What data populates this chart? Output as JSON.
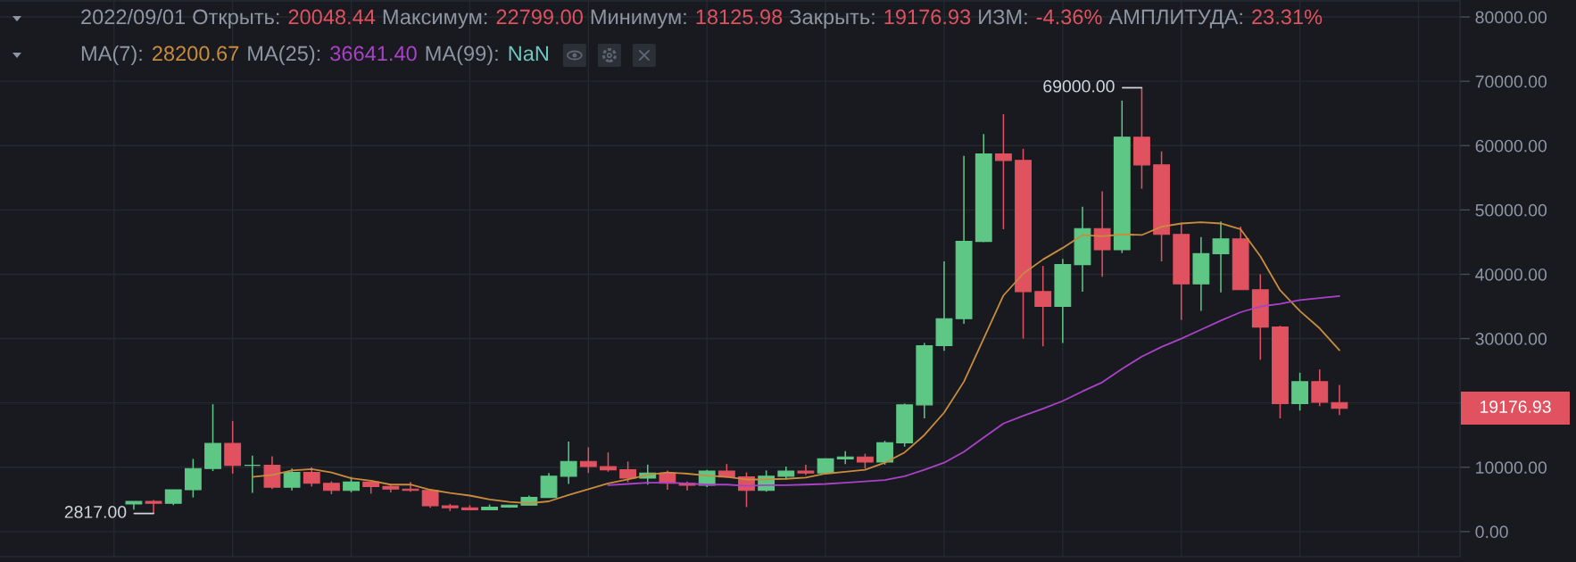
{
  "chart_data": {
    "type": "candlestick",
    "categories": [
      null,
      null,
      null,
      null,
      null,
      null,
      null,
      null,
      null,
      null,
      null,
      null,
      null,
      null,
      null,
      null,
      null,
      null,
      null,
      null,
      null,
      null,
      null,
      null,
      null,
      null,
      null,
      null,
      null,
      null,
      null,
      null,
      null,
      null,
      null,
      null,
      null,
      null,
      null,
      null,
      null,
      null,
      null,
      null,
      null,
      null,
      null,
      null,
      null,
      null,
      null,
      null,
      null,
      null,
      null,
      null,
      null,
      null,
      null,
      null,
      null,
      null
    ],
    "ohlc": [
      [
        4300,
        4700,
        3400,
        4700
      ],
      [
        4700,
        4900,
        2817,
        4400
      ],
      [
        4400,
        6500,
        4100,
        6500
      ],
      [
        6500,
        11300,
        5300,
        9800
      ],
      [
        9800,
        19800,
        9400,
        13700
      ],
      [
        13700,
        17200,
        9000,
        10300
      ],
      [
        10300,
        11800,
        6000,
        10300
      ],
      [
        10300,
        11700,
        6600,
        6900
      ],
      [
        6900,
        9800,
        6400,
        9200
      ],
      [
        9200,
        10000,
        7000,
        7500
      ],
      [
        7500,
        7800,
        5800,
        6400
      ],
      [
        6400,
        8500,
        6100,
        7700
      ],
      [
        7700,
        7800,
        5900,
        7000
      ],
      [
        7000,
        7400,
        6100,
        6600
      ],
      [
        6600,
        7700,
        6200,
        6400
      ],
      [
        6400,
        6600,
        3700,
        4000
      ],
      [
        4000,
        4300,
        3200,
        3700
      ],
      [
        3700,
        4100,
        3300,
        3400
      ],
      [
        3400,
        4200,
        3400,
        3800
      ],
      [
        3800,
        4100,
        3700,
        4100
      ],
      [
        4100,
        5600,
        4100,
        5300
      ],
      [
        5300,
        9100,
        5300,
        8600
      ],
      [
        8600,
        14000,
        7400,
        10900
      ],
      [
        10900,
        13100,
        9100,
        10100
      ],
      [
        10100,
        12300,
        9300,
        9600
      ],
      [
        9600,
        10900,
        7700,
        8300
      ],
      [
        8300,
        10400,
        7300,
        9100
      ],
      [
        9100,
        9500,
        6500,
        7500
      ],
      [
        7500,
        7800,
        6400,
        7200
      ],
      [
        7200,
        9600,
        6900,
        9400
      ],
      [
        9400,
        10500,
        8400,
        8500
      ],
      [
        8500,
        9200,
        3800,
        6400
      ],
      [
        6400,
        9500,
        6200,
        8600
      ],
      [
        8600,
        10100,
        8100,
        9400
      ],
      [
        9400,
        10400,
        8800,
        9100
      ],
      [
        9100,
        11400,
        8900,
        11300
      ],
      [
        11300,
        12500,
        10500,
        11600
      ],
      [
        11600,
        12100,
        9800,
        10800
      ],
      [
        10800,
        14100,
        10400,
        13800
      ],
      [
        13800,
        19900,
        13200,
        19700
      ],
      [
        19700,
        29300,
        17600,
        28900
      ],
      [
        28900,
        42000,
        28100,
        33100
      ],
      [
        33100,
        58400,
        32300,
        45100
      ],
      [
        45100,
        61800,
        45000,
        58700
      ],
      [
        58700,
        64900,
        47000,
        57700
      ],
      [
        57700,
        59500,
        30000,
        37300
      ],
      [
        37300,
        41300,
        28800,
        35000
      ],
      [
        35000,
        42400,
        29300,
        41500
      ],
      [
        41500,
        50500,
        37300,
        47100
      ],
      [
        47100,
        52900,
        39600,
        43800
      ],
      [
        43800,
        67000,
        43300,
        61300
      ],
      [
        61300,
        69000,
        53300,
        57000
      ],
      [
        57000,
        59100,
        42000,
        46200
      ],
      [
        46200,
        48000,
        32900,
        38500
      ],
      [
        38500,
        45800,
        34300,
        43200
      ],
      [
        43200,
        48200,
        37200,
        45500
      ],
      [
        45500,
        47400,
        37600,
        37600
      ],
      [
        37600,
        40000,
        26700,
        31800
      ],
      [
        31800,
        32000,
        17600,
        19900
      ],
      [
        19900,
        24700,
        18800,
        23300
      ],
      [
        23300,
        25200,
        19500,
        20100
      ],
      [
        20048.44,
        22799.0,
        18125.98,
        19176.93
      ]
    ],
    "colors": [
      "#5fc785",
      "#e0525f",
      "#5fc785",
      "#5fc785",
      "#5fc785",
      "#e0525f",
      "#5fc785",
      "#e0525f",
      "#5fc785",
      "#e0525f",
      "#e0525f",
      "#5fc785",
      "#e0525f",
      "#e0525f",
      "#e0525f",
      "#e0525f",
      "#e0525f",
      "#e0525f",
      "#5fc785",
      "#5fc785",
      "#5fc785",
      "#5fc785",
      "#5fc785",
      "#e0525f",
      "#e0525f",
      "#e0525f",
      "#5fc785",
      "#e0525f",
      "#e0525f",
      "#5fc785",
      "#e0525f",
      "#e0525f",
      "#5fc785",
      "#5fc785",
      "#e0525f",
      "#5fc785",
      "#5fc785",
      "#e0525f",
      "#5fc785",
      "#5fc785",
      "#5fc785",
      "#5fc785",
      "#5fc785",
      "#5fc785",
      "#e0525f",
      "#e0525f",
      "#e0525f",
      "#5fc785",
      "#5fc785",
      "#e0525f",
      "#5fc785",
      "#e0525f",
      "#e0525f",
      "#e0525f",
      "#5fc785",
      "#5fc785",
      "#e0525f",
      "#e0525f",
      "#e0525f",
      "#5fc785",
      "#e0525f",
      "#e0525f"
    ],
    "series": [
      {
        "type": "line",
        "color": "#c98c3e",
        "values": [
          null,
          null,
          null,
          null,
          null,
          null,
          8500,
          8800,
          9500,
          9700,
          9200,
          8300,
          7900,
          7300,
          7300,
          6500,
          6000,
          5600,
          5000,
          4600,
          4400,
          4700,
          5700,
          6600,
          7500,
          8100,
          8800,
          9200,
          9000,
          8700,
          8500,
          8100,
          8100,
          8200,
          8400,
          9000,
          9300,
          9600,
          10700,
          12300,
          15000,
          18500,
          23300,
          30000,
          36700,
          40100,
          42300,
          44100,
          46100,
          45900,
          46200,
          46100,
          47400,
          47900,
          48100,
          47900,
          47000,
          42800,
          37500,
          34300,
          31600,
          28200
        ]
      },
      {
        "type": "line",
        "color": "#aa42c8",
        "values": [
          null,
          null,
          null,
          null,
          null,
          null,
          null,
          null,
          null,
          null,
          null,
          null,
          null,
          null,
          null,
          null,
          null,
          null,
          null,
          null,
          null,
          null,
          null,
          null,
          7200,
          7400,
          7600,
          7600,
          7500,
          7300,
          7300,
          7100,
          7200,
          7200,
          7300,
          7400,
          7600,
          7800,
          8000,
          8600,
          9600,
          10700,
          12400,
          14600,
          16800,
          18000,
          19100,
          20300,
          21800,
          23200,
          25300,
          27200,
          28700,
          30000,
          31400,
          32800,
          34100,
          35000,
          35400,
          36000,
          36300,
          36600
        ]
      }
    ],
    "ylim": [
      -3900,
      82500
    ],
    "yticks": [
      {
        "value": 0,
        "label": "0.00"
      },
      {
        "value": 10000,
        "label": "10000.00"
      },
      {
        "value": 20000,
        "label": null
      },
      {
        "value": 30000,
        "label": "30000.00"
      },
      {
        "value": 40000,
        "label": "40000.00"
      },
      {
        "value": 50000,
        "label": "50000.00"
      },
      {
        "value": 60000,
        "label": "60000.00"
      },
      {
        "value": 70000,
        "label": "70000.00"
      },
      {
        "value": 80000,
        "label": "80000.00"
      }
    ],
    "tick_labels": "y",
    "grid": true,
    "annotations": [
      "2022/09/01",
      "Открыть:",
      "20048.44",
      "Максимум:",
      "22799.00",
      "Минимум:",
      "18125.98",
      "Закрыть:",
      "19176.93",
      "ИЗМ:",
      "-4.36%",
      "АМПЛИТУДА:",
      "23.31%",
      "MA(7):",
      "28200.67",
      "MA(25):",
      "36641.40",
      "MA(99):",
      "NaN",
      "2817.00",
      "69000.00",
      "19176.93"
    ]
  }
}
